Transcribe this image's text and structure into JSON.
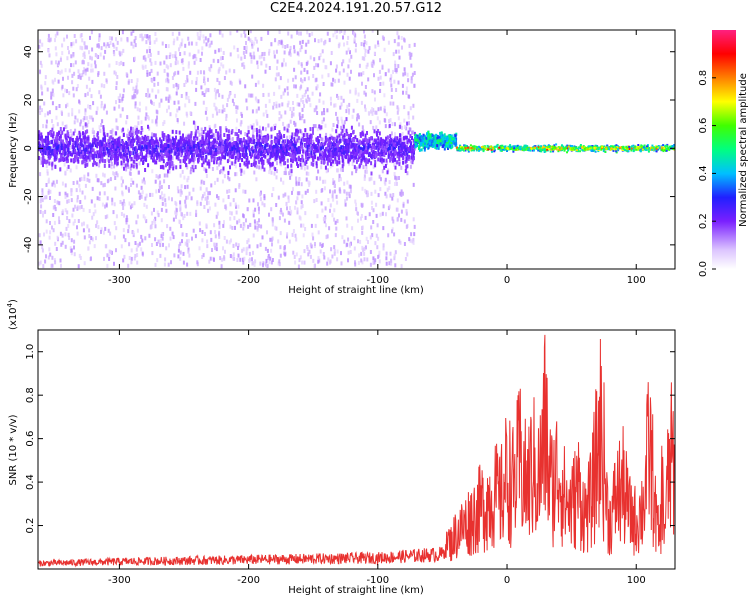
{
  "title": "C2E4.2024.191.20.57.G12",
  "chart_data": [
    {
      "type": "heatmap",
      "xlabel": "Height of straight line (km)",
      "ylabel": "Frequency (Hz)",
      "xlim": [
        -363,
        130
      ],
      "ylim": [
        -50,
        49
      ],
      "xticks": [
        -300,
        -200,
        -100,
        0,
        100
      ],
      "yticks": [
        -40,
        -20,
        0,
        20,
        40
      ],
      "xtick_labels": [
        "-300",
        "-200",
        "-100",
        "0",
        "100"
      ],
      "ytick_labels": [
        "-40",
        "-20",
        "0",
        "20",
        "40"
      ],
      "colorbar": {
        "label": "Normalized spectral amplitude",
        "range": [
          0,
          1
        ],
        "ticks": [
          0.0,
          0.2,
          0.4,
          0.6,
          0.8
        ],
        "tick_labels": [
          "0.0",
          "0.2",
          "0.4",
          "0.6",
          "0.8"
        ]
      },
      "regions": [
        {
          "x": [
            -363,
            -72
          ],
          "center_freq": 0,
          "band_halfwidth": 10,
          "scatter_halfwidth": 49,
          "amplitude": "low"
        },
        {
          "x": [
            -72,
            -40
          ],
          "center_freq": 3,
          "band_halfwidth": 4,
          "amplitude": "medium"
        },
        {
          "x": [
            -40,
            130
          ],
          "center_freq": 0,
          "band_halfwidth": 2,
          "amplitude": "high"
        }
      ]
    },
    {
      "type": "line",
      "xlabel": "Height of straight line (km)",
      "ylabel": "SNR (10 * v/v)",
      "yscale_label": "(x10",
      "yscale_exp": "4",
      "yscale_close": ")",
      "xlim": [
        -363,
        130
      ],
      "ylim": [
        0,
        1.1
      ],
      "xticks": [
        -300,
        -200,
        -100,
        0,
        100
      ],
      "yticks": [
        0.2,
        0.4,
        0.6,
        0.8,
        1.0
      ],
      "xtick_labels": [
        "-300",
        "-200",
        "-100",
        "0",
        "100"
      ],
      "ytick_labels": [
        "0.2",
        "0.4",
        "0.6",
        "0.8",
        "1.0"
      ],
      "color": "#e8312f",
      "x": [
        -363,
        -300,
        -200,
        -100,
        -50,
        -40,
        -30,
        -20,
        -10,
        -5,
        0,
        5,
        10,
        15,
        20,
        25,
        28,
        30,
        32,
        35,
        40,
        45,
        50,
        55,
        60,
        65,
        70,
        72,
        75,
        78,
        80,
        85,
        90,
        95,
        100,
        105,
        108,
        110,
        112,
        115,
        118,
        120,
        122,
        125,
        128,
        130
      ],
      "y": [
        0.03,
        0.04,
        0.05,
        0.06,
        0.08,
        0.25,
        0.35,
        0.45,
        0.55,
        0.5,
        0.7,
        0.6,
        0.8,
        0.6,
        0.75,
        0.65,
        0.9,
        1.1,
        0.7,
        0.6,
        0.75,
        0.5,
        0.45,
        0.6,
        0.4,
        0.5,
        0.85,
        1.05,
        0.8,
        0.4,
        0.35,
        0.55,
        0.6,
        0.4,
        0.35,
        0.45,
        0.7,
        0.9,
        0.75,
        0.4,
        0.2,
        0.6,
        0.3,
        0.7,
        0.82,
        0.6
      ]
    }
  ],
  "colors": {
    "line": "#e8312f",
    "axis": "#000000"
  }
}
